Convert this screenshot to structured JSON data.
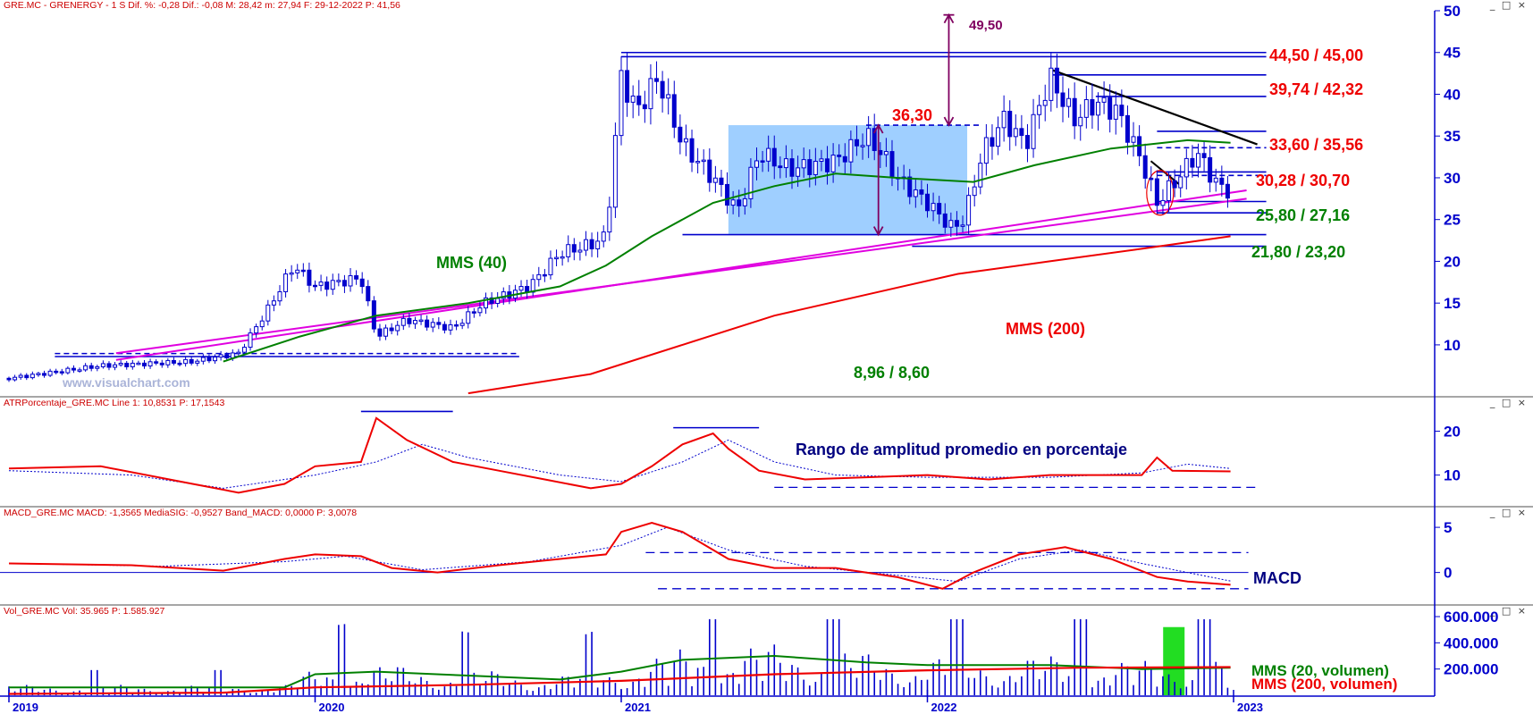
{
  "panels": {
    "price": {
      "header": "GRE.MC - GRENERGY -  1 S  Dif. %: -0,28  Dif.: -0,08  M: 28,42  m: 27,94  F: 29-12-2022  P: 41,56"
    },
    "atr": {
      "header": "ATRPorcentaje_GRE.MC  Line 1: 10,8531  P: 17,1543"
    },
    "macd": {
      "header": "MACD_GRE.MC  MACD: -1,3565  MediaSIG: -0,9527  Band_MACD: 0,0000  P: 3,0078"
    },
    "vol": {
      "header": "Vol_GRE.MC  Vol: 35.965  P: 1.585.927"
    }
  },
  "window_buttons": "_ □ ×",
  "watermark": "www.visualchart.com",
  "colors": {
    "blue": "#0000cc",
    "red": "#ee0000",
    "green": "#008000",
    "magenta": "#e000e0",
    "purple": "#800060",
    "box": "#7fbfff",
    "axis": "#0000cc"
  },
  "chart_data": [
    {
      "type": "candlestick",
      "title": "GRE.MC - GRENERGY - 1 S",
      "x_ticks": [
        "2019",
        "2020",
        "2021",
        "2022",
        "2023"
      ],
      "ylim": [
        4,
        50
      ],
      "y_ticks": [
        "50",
        "45",
        "40",
        "35",
        "30",
        "25",
        "20",
        "15",
        "10"
      ],
      "ohlc_summary": {
        "start_close": 6.0,
        "end_close": 28.4
      },
      "close_path": [
        [
          2019.0,
          6.0
        ],
        [
          2019.3,
          7.5
        ],
        [
          2019.6,
          8.0
        ],
        [
          2019.75,
          9.0
        ],
        [
          2019.85,
          14.5
        ],
        [
          2019.93,
          19.5
        ],
        [
          2020.0,
          17.0
        ],
        [
          2020.15,
          18.0
        ],
        [
          2020.2,
          11.0
        ],
        [
          2020.3,
          13.0
        ],
        [
          2020.45,
          12.0
        ],
        [
          2020.55,
          15.0
        ],
        [
          2020.7,
          17.0
        ],
        [
          2020.8,
          21.0
        ],
        [
          2020.9,
          22.0
        ],
        [
          2020.95,
          23.0
        ],
        [
          2021.0,
          42.0
        ],
        [
          2021.05,
          38.0
        ],
        [
          2021.12,
          42.0
        ],
        [
          2021.2,
          34.0
        ],
        [
          2021.3,
          30.0
        ],
        [
          2021.38,
          26.0
        ],
        [
          2021.45,
          33.0
        ],
        [
          2021.55,
          31.0
        ],
        [
          2021.7,
          32.0
        ],
        [
          2021.8,
          35.0
        ],
        [
          2021.85,
          33.0
        ],
        [
          2021.9,
          30.0
        ],
        [
          2022.0,
          27.0
        ],
        [
          2022.08,
          24.0
        ],
        [
          2022.12,
          25.0
        ],
        [
          2022.18,
          33.0
        ],
        [
          2022.25,
          37.0
        ],
        [
          2022.32,
          34.0
        ],
        [
          2022.4,
          42.0
        ],
        [
          2022.48,
          37.0
        ],
        [
          2022.55,
          39.0
        ],
        [
          2022.62,
          38.0
        ],
        [
          2022.7,
          32.0
        ],
        [
          2022.75,
          27.0
        ],
        [
          2022.82,
          30.0
        ],
        [
          2022.88,
          33.0
        ],
        [
          2022.95,
          29.0
        ],
        [
          2022.99,
          28.4
        ]
      ],
      "series": [
        {
          "name": "MMS (40)",
          "points": [
            [
              2019.7,
              8.0
            ],
            [
              2019.95,
              11.0
            ],
            [
              2020.2,
              13.5
            ],
            [
              2020.5,
              15.0
            ],
            [
              2020.8,
              17.0
            ],
            [
              2020.95,
              19.5
            ],
            [
              2021.1,
              23.0
            ],
            [
              2021.3,
              27.0
            ],
            [
              2021.5,
              29.0
            ],
            [
              2021.7,
              30.5
            ],
            [
              2021.9,
              30.0
            ],
            [
              2022.0,
              29.8
            ],
            [
              2022.15,
              29.5
            ],
            [
              2022.35,
              31.5
            ],
            [
              2022.6,
              33.5
            ],
            [
              2022.85,
              34.5
            ],
            [
              2022.99,
              34.2
            ]
          ]
        },
        {
          "name": "MMS (200)",
          "points": [
            [
              2020.5,
              4.2
            ],
            [
              2020.9,
              6.5
            ],
            [
              2021.2,
              10.0
            ],
            [
              2021.5,
              13.5
            ],
            [
              2021.8,
              16.0
            ],
            [
              2022.1,
              18.5
            ],
            [
              2022.4,
              20.0
            ],
            [
              2022.7,
              21.5
            ],
            [
              2022.99,
              23.0
            ]
          ]
        }
      ],
      "annotations": [
        {
          "text": "44,50 /  45,00",
          "color": "red"
        },
        {
          "text": "39,74 / 42,32",
          "color": "red"
        },
        {
          "text": "33,60 / 35,56",
          "color": "red"
        },
        {
          "text": "30,28 / 30,70",
          "color": "red"
        },
        {
          "text": "25,80 / 27,16",
          "color": "green"
        },
        {
          "text": "21,80 / 23,20",
          "color": "green"
        },
        {
          "text": "8,96 / 8,60",
          "color": "green"
        },
        {
          "text": "36,30",
          "color": "red"
        },
        {
          "text": "49,50",
          "color": "purple"
        },
        {
          "text": "MMS (40)",
          "color": "green"
        },
        {
          "text": "MMS (200)",
          "color": "red"
        }
      ],
      "levels": [
        45.0,
        44.5,
        42.32,
        39.74,
        35.56,
        33.6,
        30.7,
        30.28,
        27.16,
        25.8,
        23.2,
        21.8,
        8.96,
        8.6
      ],
      "box": {
        "x0": 2021.35,
        "x1": 2022.13,
        "y0": 23.2,
        "y1": 36.3
      },
      "target_arrow": {
        "x": 2022.07,
        "from": 36.3,
        "to": 49.5
      }
    },
    {
      "type": "line",
      "title": "ATRPorcentaje_GRE.MC",
      "y_ticks": [
        "20",
        "10"
      ],
      "ylim": [
        3,
        25
      ],
      "annotation": "Rango de amplitud promedio en porcentaje",
      "series": [
        {
          "name": "Line 1",
          "points": [
            [
              2019.0,
              11.5
            ],
            [
              2019.3,
              12.0
            ],
            [
              2019.6,
              8.0
            ],
            [
              2019.75,
              6.0
            ],
            [
              2019.9,
              8.0
            ],
            [
              2020.0,
              12.0
            ],
            [
              2020.15,
              13.0
            ],
            [
              2020.2,
              23.0
            ],
            [
              2020.3,
              18.0
            ],
            [
              2020.45,
              13.0
            ],
            [
              2020.6,
              11.0
            ],
            [
              2020.75,
              9.0
            ],
            [
              2020.9,
              7.0
            ],
            [
              2021.0,
              8.0
            ],
            [
              2021.1,
              12.0
            ],
            [
              2021.2,
              17.0
            ],
            [
              2021.3,
              19.5
            ],
            [
              2021.35,
              16.0
            ],
            [
              2021.45,
              11.0
            ],
            [
              2021.6,
              9.0
            ],
            [
              2021.8,
              9.5
            ],
            [
              2022.0,
              10.0
            ],
            [
              2022.2,
              9.0
            ],
            [
              2022.4,
              10.0
            ],
            [
              2022.55,
              10.0
            ],
            [
              2022.7,
              10.0
            ],
            [
              2022.75,
              14.0
            ],
            [
              2022.8,
              11.0
            ],
            [
              2022.99,
              10.85
            ]
          ]
        },
        {
          "name": "",
          "points": [
            [
              2019.0,
              11.0
            ],
            [
              2019.4,
              10.0
            ],
            [
              2019.7,
              7.0
            ],
            [
              2020.0,
              10.0
            ],
            [
              2020.2,
              13.0
            ],
            [
              2020.35,
              17.0
            ],
            [
              2020.5,
              14.0
            ],
            [
              2020.8,
              10.0
            ],
            [
              2021.0,
              8.5
            ],
            [
              2021.2,
              13.0
            ],
            [
              2021.35,
              18.0
            ],
            [
              2021.5,
              13.0
            ],
            [
              2021.7,
              10.0
            ],
            [
              2022.0,
              9.5
            ],
            [
              2022.4,
              9.5
            ],
            [
              2022.7,
              10.5
            ],
            [
              2022.85,
              12.5
            ],
            [
              2022.99,
              11.5
            ]
          ]
        }
      ]
    },
    {
      "type": "line",
      "title": "MACD_GRE.MC",
      "y_ticks": [
        "5",
        "0"
      ],
      "ylim": [
        -3.5,
        6
      ],
      "annotation": "MACD",
      "series": [
        {
          "name": "MACD",
          "points": [
            [
              2019.0,
              1.0
            ],
            [
              2019.4,
              0.8
            ],
            [
              2019.7,
              0.2
            ],
            [
              2019.9,
              1.5
            ],
            [
              2020.0,
              2.0
            ],
            [
              2020.15,
              1.8
            ],
            [
              2020.25,
              0.5
            ],
            [
              2020.4,
              0.0
            ],
            [
              2020.6,
              0.8
            ],
            [
              2020.8,
              1.5
            ],
            [
              2020.95,
              2.0
            ],
            [
              2021.0,
              4.5
            ],
            [
              2021.1,
              5.5
            ],
            [
              2021.2,
              4.5
            ],
            [
              2021.35,
              1.5
            ],
            [
              2021.5,
              0.5
            ],
            [
              2021.7,
              0.5
            ],
            [
              2021.9,
              -0.5
            ],
            [
              2022.05,
              -1.8
            ],
            [
              2022.15,
              0.0
            ],
            [
              2022.3,
              2.0
            ],
            [
              2022.45,
              2.8
            ],
            [
              2022.6,
              1.5
            ],
            [
              2022.75,
              -0.5
            ],
            [
              2022.85,
              -1.0
            ],
            [
              2022.99,
              -1.36
            ]
          ]
        },
        {
          "name": "MediaSIG",
          "points": [
            [
              2019.0,
              1.0
            ],
            [
              2019.5,
              0.7
            ],
            [
              2019.9,
              1.2
            ],
            [
              2020.1,
              1.8
            ],
            [
              2020.35,
              0.3
            ],
            [
              2020.7,
              1.2
            ],
            [
              2021.0,
              3.0
            ],
            [
              2021.15,
              5.0
            ],
            [
              2021.35,
              2.5
            ],
            [
              2021.6,
              0.7
            ],
            [
              2021.9,
              -0.3
            ],
            [
              2022.1,
              -1.0
            ],
            [
              2022.3,
              1.5
            ],
            [
              2022.5,
              2.5
            ],
            [
              2022.7,
              1.0
            ],
            [
              2022.99,
              -0.95
            ]
          ]
        }
      ]
    },
    {
      "type": "bar",
      "title": "Vol_GRE.MC",
      "y_ticks": [
        "600.000",
        "400.000",
        "200.000"
      ],
      "ylim": [
        0,
        600000
      ],
      "annotations": [
        "MMS (20, volumen)",
        "MMS (200, volumen)"
      ],
      "series": [
        {
          "name": "MMS (20, volumen)",
          "points": [
            [
              2019.0,
              60000
            ],
            [
              2019.9,
              60000
            ],
            [
              2020.0,
              160000
            ],
            [
              2020.2,
              180000
            ],
            [
              2020.5,
              150000
            ],
            [
              2020.8,
              120000
            ],
            [
              2021.0,
              180000
            ],
            [
              2021.2,
              270000
            ],
            [
              2021.5,
              300000
            ],
            [
              2021.8,
              250000
            ],
            [
              2022.0,
              230000
            ],
            [
              2022.4,
              230000
            ],
            [
              2022.7,
              200000
            ],
            [
              2022.99,
              210000
            ]
          ]
        },
        {
          "name": "MMS (200, volumen)",
          "points": [
            [
              2019.0,
              10000
            ],
            [
              2019.7,
              20000
            ],
            [
              2020.0,
              60000
            ],
            [
              2020.5,
              80000
            ],
            [
              2021.0,
              110000
            ],
            [
              2021.5,
              160000
            ],
            [
              2022.0,
              190000
            ],
            [
              2022.5,
              210000
            ],
            [
              2022.99,
              215000
            ]
          ]
        }
      ]
    }
  ]
}
